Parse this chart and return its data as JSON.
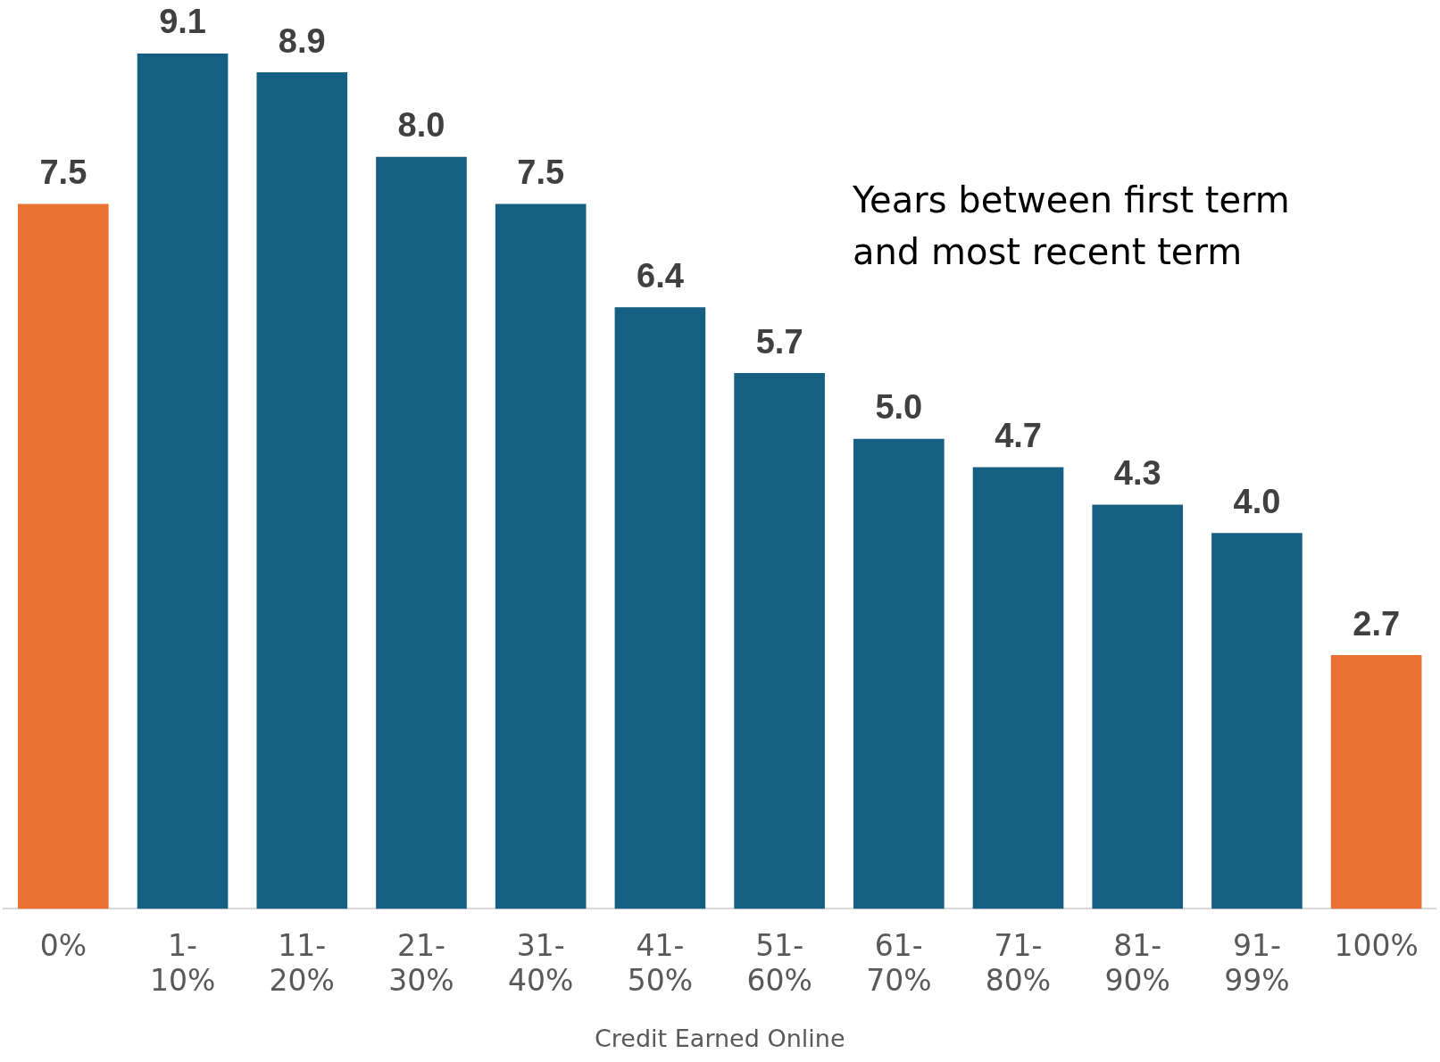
{
  "chart_data": {
    "type": "bar",
    "xlabel": "Credit Earned Online",
    "categories": [
      "0%",
      "1-10%",
      "11-20%",
      "21-30%",
      "31-40%",
      "41-50%",
      "51-60%",
      "61-70%",
      "71-80%",
      "81-90%",
      "91-99%",
      "100%"
    ],
    "values": [
      7.5,
      9.1,
      8.9,
      8.0,
      7.5,
      6.4,
      5.7,
      5.0,
      4.7,
      4.3,
      4.0,
      2.7
    ],
    "colors": [
      "#e97132",
      "#156082",
      "#156082",
      "#156082",
      "#156082",
      "#156082",
      "#156082",
      "#156082",
      "#156082",
      "#156082",
      "#156082",
      "#e97132"
    ],
    "value_labels": [
      "7.5",
      "9.1",
      "8.9",
      "8.0",
      "7.5",
      "6.4",
      "5.7",
      "5.0",
      "4.7",
      "4.3",
      "4.0",
      "2.7"
    ],
    "grid": false,
    "legend": false,
    "tick_labels": "x",
    "annotations": [
      "Years between first term and most recent term"
    ]
  }
}
